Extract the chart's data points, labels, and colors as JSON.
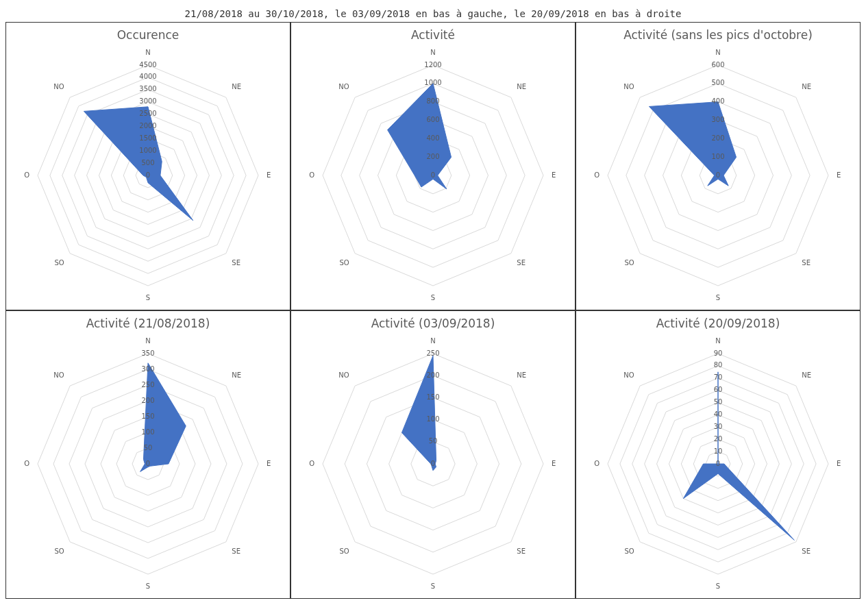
{
  "chart_data": [
    {
      "type": "radar",
      "title": "Occurence",
      "annotations": [
        "21/08/2018 au 30/10/2018, le 03/09/2018 en bas à gauche, le 20/09/2018 en bas à droite"
      ],
      "categories": [
        "N",
        "NE",
        "E",
        "SE",
        "S",
        "SO",
        "O",
        "NO"
      ],
      "series": [
        {
          "color": "#4472c4",
          "values": [
            2800,
            800,
            500,
            2600,
            300,
            100,
            200,
            3700
          ]
        }
      ],
      "ylim": [
        0,
        4500
      ],
      "yticks": [
        0,
        500,
        1000,
        1500,
        2000,
        2500,
        3000,
        3500,
        4000,
        4500
      ],
      "grid": true
    },
    {
      "type": "radar",
      "title": "Activité",
      "categories": [
        "N",
        "NE",
        "E",
        "SE",
        "S",
        "SO",
        "O",
        "NO"
      ],
      "series": [
        {
          "color": "#4472c4",
          "values": [
            1000,
            280,
            50,
            210,
            40,
            180,
            200,
            700
          ]
        }
      ],
      "ylim": [
        0,
        1200
      ],
      "yticks": [
        0,
        200,
        400,
        600,
        800,
        1000,
        1200
      ],
      "grid": true
    },
    {
      "type": "radar",
      "title": "Activité (sans les pics d'octobre)",
      "categories": [
        "N",
        "NE",
        "E",
        "SE",
        "S",
        "SO",
        "O",
        "NO"
      ],
      "series": [
        {
          "color": "#4472c4",
          "values": [
            400,
            140,
            30,
            80,
            20,
            80,
            20,
            530
          ]
        }
      ],
      "ylim": [
        0,
        600
      ],
      "yticks": [
        0,
        100,
        200,
        300,
        400,
        500,
        600
      ],
      "grid": true
    },
    {
      "type": "radar",
      "title": "Activité (21/08/2018)",
      "categories": [
        "N",
        "NE",
        "E",
        "SE",
        "S",
        "SO",
        "O",
        "NO"
      ],
      "series": [
        {
          "color": "#4472c4",
          "values": [
            320,
            170,
            65,
            10,
            10,
            35,
            10,
            20
          ]
        }
      ],
      "ylim": [
        0,
        350
      ],
      "yticks": [
        0,
        50,
        100,
        150,
        200,
        250,
        300,
        350
      ],
      "grid": true
    },
    {
      "type": "radar",
      "title": "Activité (03/09/2018)",
      "categories": [
        "N",
        "NE",
        "E",
        "SE",
        "S",
        "SO",
        "O",
        "NO"
      ],
      "series": [
        {
          "color": "#4472c4",
          "values": [
            245,
            10,
            5,
            10,
            15,
            5,
            5,
            100
          ]
        }
      ],
      "ylim": [
        0,
        250
      ],
      "yticks": [
        0,
        50,
        100,
        150,
        200,
        250
      ],
      "grid": true
    },
    {
      "type": "radar",
      "title": "Activité (20/09/2018)",
      "categories": [
        "N",
        "NE",
        "E",
        "SE",
        "S",
        "SO",
        "O",
        "NO"
      ],
      "series": [
        {
          "color": "#4472c4",
          "values": [
            75,
            0,
            5,
            88,
            8,
            40,
            12,
            0
          ]
        }
      ],
      "ylim": [
        0,
        90
      ],
      "yticks": [
        0,
        10,
        20,
        30,
        40,
        50,
        60,
        70,
        80,
        90
      ],
      "grid": true
    }
  ]
}
